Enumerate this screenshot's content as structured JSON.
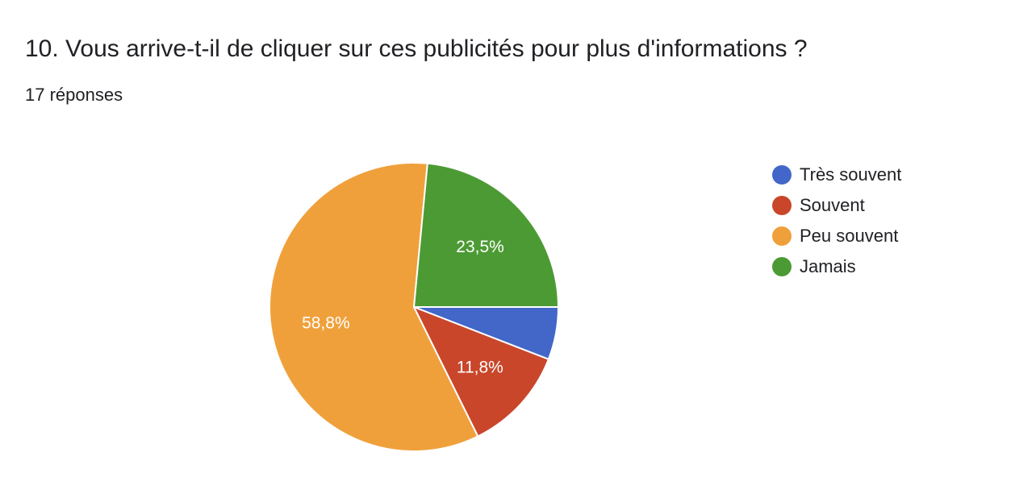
{
  "question": {
    "title": "10. Vous arrive-t-il de cliquer sur ces publicités pour plus d'informations ?",
    "response_count": "17 réponses"
  },
  "chart_data": {
    "type": "pie",
    "title": "10. Vous arrive-t-il de cliquer sur ces publicités pour plus d'informations ?",
    "categories": [
      "Très souvent",
      "Souvent",
      "Peu souvent",
      "Jamais"
    ],
    "values": [
      5.9,
      11.8,
      58.8,
      23.5
    ],
    "data_labels": [
      "",
      "11,8%",
      "58,8%",
      "23,5%"
    ],
    "colors": [
      "#4267c9",
      "#c9462b",
      "#f0a03b",
      "#4c9a34"
    ],
    "legend_position": "right",
    "start_angle": "3 o'clock, clockwise"
  }
}
